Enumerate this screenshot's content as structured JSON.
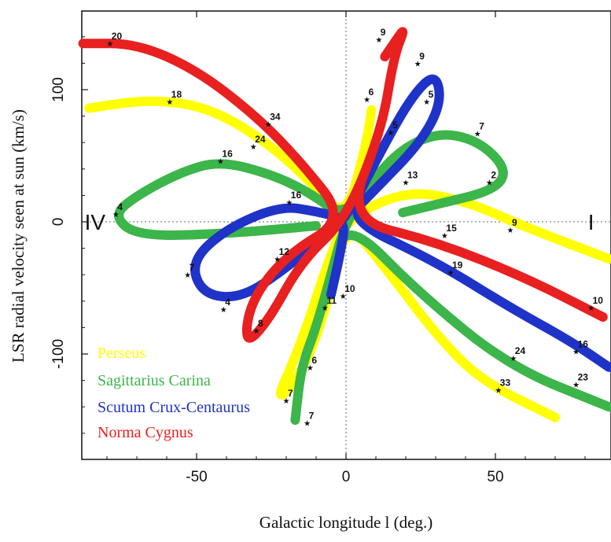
{
  "chart_data": {
    "type": "line",
    "xlabel": "Galactic longitude l (deg.)",
    "ylabel": "LSR radial velocity seen at sun (km/s)",
    "xlim": [
      -88,
      88
    ],
    "ylim": [
      -180,
      158
    ],
    "x_ticks": [
      -50,
      0,
      50
    ],
    "y_ticks": [
      -100,
      0,
      100
    ],
    "quadrant_labels": [
      {
        "text": "IV",
        "x": -84,
        "y": 0
      },
      {
        "text": "I",
        "x": 82,
        "y": 0
      }
    ],
    "series": [
      {
        "name": "Perseus",
        "color": "#ffff00",
        "points": [
          [
            -86,
            86
          ],
          [
            -65,
            93
          ],
          [
            -45,
            86
          ],
          [
            -25,
            58
          ],
          [
            -10,
            26
          ],
          [
            0,
            2
          ],
          [
            7,
            60
          ],
          [
            9,
            93
          ],
          [
            7,
            60
          ],
          [
            0,
            2
          ],
          [
            20,
            24
          ],
          [
            40,
            16
          ],
          [
            60,
            -4
          ],
          [
            88,
            -28
          ],
          [
            88,
            -28
          ],
          [
            60,
            -4
          ],
          [
            40,
            16
          ],
          [
            20,
            24
          ],
          [
            0,
            2
          ],
          [
            -6,
            -30
          ],
          [
            -12,
            -72
          ],
          [
            -18,
            -108
          ],
          [
            -23,
            -133
          ],
          [
            -19,
            -128
          ],
          [
            -12,
            -100
          ],
          [
            -6,
            -60
          ],
          [
            0,
            2
          ],
          [
            15,
            -40
          ],
          [
            30,
            -85
          ],
          [
            45,
            -120
          ],
          [
            70,
            -148
          ]
        ]
      },
      {
        "name": "Sagittarius Carina",
        "color": "#3cb54a",
        "points": [
          [
            -10,
            -3
          ],
          [
            -40,
            -9
          ],
          [
            -70,
            -11
          ],
          [
            -78,
            5
          ],
          [
            -70,
            20
          ],
          [
            -55,
            38
          ],
          [
            -42,
            46
          ],
          [
            -25,
            36
          ],
          [
            -12,
            22
          ],
          [
            0,
            2
          ],
          [
            15,
            50
          ],
          [
            30,
            68
          ],
          [
            44,
            62
          ],
          [
            54,
            40
          ],
          [
            50,
            24
          ],
          [
            30,
            13
          ],
          [
            19,
            7
          ],
          [
            19,
            7
          ],
          [
            30,
            13
          ],
          [
            50,
            24
          ],
          [
            54,
            40
          ],
          [
            44,
            62
          ],
          [
            30,
            68
          ],
          [
            15,
            50
          ],
          [
            0,
            2
          ],
          [
            -5,
            -40
          ],
          [
            -10,
            -80
          ],
          [
            -15,
            -110
          ],
          [
            -17,
            -150
          ],
          [
            -17,
            -150
          ],
          [
            -15,
            -110
          ],
          [
            -10,
            -80
          ],
          [
            -5,
            -40
          ],
          [
            0,
            2
          ],
          [
            25,
            -55
          ],
          [
            55,
            -110
          ],
          [
            88,
            -140
          ]
        ]
      },
      {
        "name": "Scutum Crux-Centaurus",
        "color": "#1f33c8",
        "points": [
          [
            -5,
            -55
          ],
          [
            -2,
            -25
          ],
          [
            0,
            2
          ],
          [
            -10,
            8
          ],
          [
            -22,
            12
          ],
          [
            -40,
            -5
          ],
          [
            -52,
            -30
          ],
          [
            -48,
            -55
          ],
          [
            -35,
            -58
          ],
          [
            -20,
            -35
          ],
          [
            -8,
            -12
          ],
          [
            0,
            2
          ],
          [
            12,
            55
          ],
          [
            22,
            95
          ],
          [
            30,
            113
          ],
          [
            32,
            90
          ],
          [
            25,
            60
          ],
          [
            10,
            25
          ],
          [
            0,
            2
          ],
          [
            30,
            -30
          ],
          [
            55,
            -65
          ],
          [
            75,
            -90
          ],
          [
            88,
            -110
          ]
        ]
      },
      {
        "name": "Norma Cygnus",
        "color": "#e82020",
        "points": [
          [
            -88,
            135
          ],
          [
            -70,
            135
          ],
          [
            -50,
            115
          ],
          [
            -30,
            80
          ],
          [
            -15,
            45
          ],
          [
            0,
            2
          ],
          [
            -20,
            -25
          ],
          [
            -32,
            -60
          ],
          [
            -34,
            -94
          ],
          [
            -26,
            -75
          ],
          [
            -15,
            -30
          ],
          [
            0,
            2
          ],
          [
            12,
            70
          ],
          [
            16,
            125
          ],
          [
            20,
            148
          ],
          [
            16,
            135
          ],
          [
            13,
            125
          ],
          [
            13,
            125
          ],
          [
            16,
            135
          ],
          [
            20,
            148
          ],
          [
            16,
            125
          ],
          [
            12,
            70
          ],
          [
            0,
            2
          ],
          [
            30,
            -15
          ],
          [
            60,
            -42
          ],
          [
            86,
            -72
          ]
        ]
      }
    ],
    "distance_labels": [
      {
        "text": "20",
        "x": -79,
        "y": 135,
        "series": "Norma Cygnus"
      },
      {
        "text": "18",
        "x": -59,
        "y": 91,
        "series": "Perseus"
      },
      {
        "text": "34",
        "x": -26,
        "y": 74,
        "series": "Norma Cygnus"
      },
      {
        "text": "24",
        "x": -31,
        "y": 57,
        "series": "Perseus"
      },
      {
        "text": "16",
        "x": -42,
        "y": 46,
        "series": "Sagittarius Carina"
      },
      {
        "text": "4",
        "x": -77,
        "y": 6,
        "series": "Sagittarius Carina"
      },
      {
        "text": "16",
        "x": -19,
        "y": 15,
        "series": "Scutum Crux-Centaurus"
      },
      {
        "text": "12",
        "x": -23,
        "y": -28,
        "series": "Norma Cygnus"
      },
      {
        "text": "7",
        "x": -53,
        "y": -40,
        "series": "Scutum Crux-Centaurus"
      },
      {
        "text": "4",
        "x": -41,
        "y": -66,
        "series": "Scutum Crux-Centaurus"
      },
      {
        "text": "8",
        "x": -30,
        "y": -82,
        "series": "Norma Cygnus"
      },
      {
        "text": "11",
        "x": -7,
        "y": -65,
        "series": "Perseus"
      },
      {
        "text": "10",
        "x": -1,
        "y": -56,
        "series": "Scutum Crux-Centaurus"
      },
      {
        "text": "6",
        "x": -12,
        "y": -110,
        "series": "Sagittarius Carina"
      },
      {
        "text": "7",
        "x": -20,
        "y": -135,
        "series": "Perseus"
      },
      {
        "text": "7",
        "x": -13,
        "y": -152,
        "series": "Sagittarius Carina"
      },
      {
        "text": "9",
        "x": 11,
        "y": 138,
        "series": "Norma Cygnus"
      },
      {
        "text": "9",
        "x": 24,
        "y": 120,
        "series": "Scutum Crux-Centaurus"
      },
      {
        "text": "6",
        "x": 7,
        "y": 93,
        "series": "Perseus"
      },
      {
        "text": "5",
        "x": 27,
        "y": 91,
        "series": "Scutum Crux-Centaurus"
      },
      {
        "text": "5",
        "x": 15,
        "y": 68,
        "series": "Norma Cygnus"
      },
      {
        "text": "7",
        "x": 44,
        "y": 67,
        "series": "Sagittarius Carina"
      },
      {
        "text": "13",
        "x": 20,
        "y": 30,
        "series": "Perseus"
      },
      {
        "text": "2",
        "x": 48,
        "y": 30,
        "series": "Sagittarius Carina"
      },
      {
        "text": "9",
        "x": 55,
        "y": -6,
        "series": "Perseus"
      },
      {
        "text": "15",
        "x": 33,
        "y": -10,
        "series": "Norma Cygnus"
      },
      {
        "text": "19",
        "x": 35,
        "y": -38,
        "series": "Scutum Crux-Centaurus"
      },
      {
        "text": "10",
        "x": 82,
        "y": -65,
        "series": "Norma Cygnus"
      },
      {
        "text": "24",
        "x": 56,
        "y": -103,
        "series": "Sagittarius Carina"
      },
      {
        "text": "16",
        "x": 77,
        "y": -98,
        "series": "Scutum Crux-Centaurus"
      },
      {
        "text": "33",
        "x": 51,
        "y": -127,
        "series": "Perseus"
      },
      {
        "text": "23",
        "x": 77,
        "y": -123,
        "series": "Sagittarius Carina"
      }
    ],
    "legend": [
      {
        "label": "Perseus",
        "color": "#ffff00"
      },
      {
        "label": "Sagittarius Carina",
        "color": "#3cb54a"
      },
      {
        "label": "Scutum Crux-Centaurus",
        "color": "#1f33c8"
      },
      {
        "label": "Norma Cygnus",
        "color": "#e82020"
      }
    ],
    "grid": false,
    "legend_position": "bottom-left"
  }
}
